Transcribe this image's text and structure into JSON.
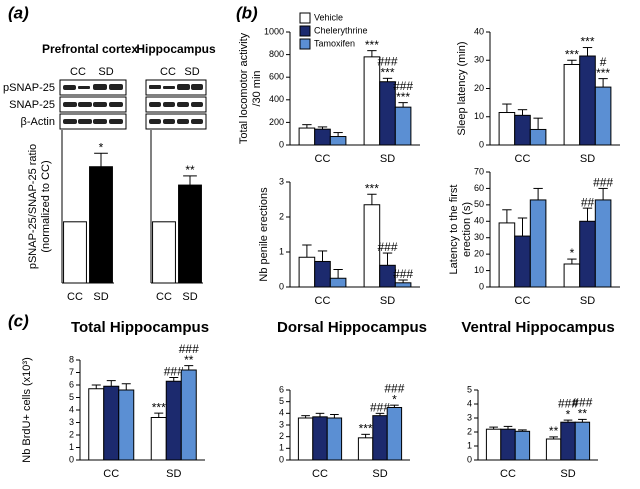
{
  "panel_labels": [
    "(a)",
    "(b)",
    "(c)"
  ],
  "blot": {
    "lanes": [
      "CC",
      "SD"
    ],
    "rows": [
      "pSNAP-25",
      "SNAP-25",
      "β-Actin"
    ]
  },
  "chart_data": [
    {
      "type": "bar",
      "title": "Prefrontal cortex",
      "ylabel": [
        "pSNAP-25/SNAP-25 ratio",
        "(normalized to CC)"
      ],
      "categories": [
        "CC",
        "SD"
      ],
      "values": [
        100,
        190
      ],
      "errors": [
        null,
        22
      ],
      "colors": [
        "#ffffff",
        "#000000"
      ],
      "annotations": [
        null,
        [
          "*"
        ]
      ],
      "ylim": [
        0,
        250
      ]
    },
    {
      "type": "bar",
      "title": "Hippocampus",
      "categories": [
        "CC",
        "SD"
      ],
      "values": [
        100,
        160
      ],
      "errors": [
        null,
        15
      ],
      "colors": [
        "#ffffff",
        "#000000"
      ],
      "annotations": [
        null,
        [
          "**"
        ]
      ],
      "ylim": [
        0,
        250
      ]
    },
    {
      "type": "grouped_bar",
      "ylabel": [
        "Total locomotor activity",
        "/30 min"
      ],
      "categories": [
        "CC",
        "SD"
      ],
      "legend": "top-left",
      "series": [
        {
          "name": "Vehicle",
          "color": "#ffffff",
          "values": [
            150,
            780
          ],
          "errors": [
            30,
            55
          ],
          "annotations": [
            null,
            [
              "***"
            ]
          ]
        },
        {
          "name": "Chelerythrine",
          "color": "#1c2a6e",
          "values": [
            140,
            560
          ],
          "errors": [
            20,
            30
          ],
          "annotations": [
            null,
            [
              "###",
              "***"
            ]
          ]
        },
        {
          "name": "Tamoxifen",
          "color": "#5b8fd3",
          "values": [
            75,
            335
          ],
          "errors": [
            35,
            40
          ],
          "annotations": [
            null,
            [
              "###",
              "***"
            ]
          ]
        }
      ],
      "ylim": [
        0,
        1000
      ],
      "yticks": [
        0,
        200,
        400,
        600,
        800,
        1000
      ]
    },
    {
      "type": "grouped_bar",
      "ylabel": [
        "Sleep latency (min)"
      ],
      "categories": [
        "CC",
        "SD"
      ],
      "series": [
        {
          "color": "#ffffff",
          "values": [
            11.5,
            28.5
          ],
          "errors": [
            3,
            1.5
          ],
          "annotations": [
            null,
            [
              "***"
            ]
          ]
        },
        {
          "color": "#1c2a6e",
          "values": [
            10.5,
            31.5
          ],
          "errors": [
            2,
            3
          ],
          "annotations": [
            null,
            [
              "***"
            ]
          ]
        },
        {
          "color": "#5b8fd3",
          "values": [
            5.5,
            20.5
          ],
          "errors": [
            4,
            3
          ],
          "annotations": [
            null,
            [
              "#",
              "***"
            ]
          ]
        }
      ],
      "ylim": [
        0,
        40
      ],
      "yticks": [
        0,
        10,
        20,
        30,
        40
      ]
    },
    {
      "type": "grouped_bar",
      "ylabel": [
        "Nb penile erections"
      ],
      "categories": [
        "CC",
        "SD"
      ],
      "series": [
        {
          "color": "#ffffff",
          "values": [
            0.85,
            2.35
          ],
          "errors": [
            0.35,
            0.3
          ],
          "annotations": [
            null,
            [
              "***"
            ]
          ]
        },
        {
          "color": "#1c2a6e",
          "values": [
            0.73,
            0.62
          ],
          "errors": [
            0.3,
            0.35
          ],
          "annotations": [
            null,
            [
              "###"
            ]
          ]
        },
        {
          "color": "#5b8fd3",
          "values": [
            0.25,
            0.12
          ],
          "errors": [
            0.25,
            0.08
          ],
          "annotations": [
            null,
            [
              "###"
            ]
          ]
        }
      ],
      "ylim": [
        0,
        3
      ],
      "yticks": [
        0,
        1,
        2,
        3
      ]
    },
    {
      "type": "grouped_bar",
      "ylabel": [
        "Latency to the first",
        "erection (s)"
      ],
      "categories": [
        "CC",
        "SD"
      ],
      "series": [
        {
          "color": "#ffffff",
          "values": [
            39,
            14
          ],
          "errors": [
            8,
            3
          ],
          "annotations": [
            null,
            [
              "*"
            ]
          ]
        },
        {
          "color": "#1c2a6e",
          "values": [
            31,
            40
          ],
          "errors": [
            11,
            8
          ],
          "annotations": [
            null,
            [
              "##"
            ]
          ]
        },
        {
          "color": "#5b8fd3",
          "values": [
            53,
            53
          ],
          "errors": [
            7,
            7
          ],
          "annotations": [
            null,
            [
              "###"
            ]
          ]
        }
      ],
      "ylim": [
        0,
        70
      ],
      "yticks": [
        0,
        10,
        20,
        30,
        40,
        50,
        60,
        70
      ]
    },
    {
      "type": "grouped_bar",
      "title": "Total Hippocampus",
      "ylabel": [
        "Nb BrdU+ cells (x10³)"
      ],
      "categories": [
        "CC",
        "SD"
      ],
      "series": [
        {
          "color": "#ffffff",
          "values": [
            5.7,
            3.4
          ],
          "errors": [
            0.3,
            0.35
          ],
          "annotations": [
            null,
            [
              "***"
            ]
          ]
        },
        {
          "color": "#1c2a6e",
          "values": [
            5.9,
            6.3
          ],
          "errors": [
            0.45,
            0.3
          ],
          "annotations": [
            null,
            [
              "###"
            ]
          ]
        },
        {
          "color": "#5b8fd3",
          "values": [
            5.6,
            7.2
          ],
          "errors": [
            0.5,
            0.35
          ],
          "annotations": [
            null,
            [
              "###",
              "**"
            ]
          ]
        }
      ],
      "ylim": [
        0,
        8
      ],
      "yticks": [
        0,
        1,
        2,
        3,
        4,
        5,
        6,
        7,
        8
      ]
    },
    {
      "type": "grouped_bar",
      "title": "Dorsal Hippocampus",
      "categories": [
        "CC",
        "SD"
      ],
      "series": [
        {
          "color": "#ffffff",
          "values": [
            3.6,
            1.9
          ],
          "errors": [
            0.2,
            0.3
          ],
          "annotations": [
            null,
            [
              "***"
            ]
          ]
        },
        {
          "color": "#1c2a6e",
          "values": [
            3.7,
            3.8
          ],
          "errors": [
            0.3,
            0.2
          ],
          "annotations": [
            null,
            [
              "###"
            ]
          ]
        },
        {
          "color": "#5b8fd3",
          "values": [
            3.6,
            4.5
          ],
          "errors": [
            0.3,
            0.2
          ],
          "annotations": [
            null,
            [
              "###",
              "*"
            ]
          ]
        }
      ],
      "ylim": [
        0,
        6
      ],
      "yticks": [
        0,
        1,
        2,
        3,
        4,
        5,
        6
      ]
    },
    {
      "type": "grouped_bar",
      "title": "Ventral Hippocampus",
      "categories": [
        "CC",
        "SD"
      ],
      "series": [
        {
          "color": "#ffffff",
          "values": [
            2.2,
            1.5
          ],
          "errors": [
            0.15,
            0.15
          ],
          "annotations": [
            null,
            [
              "**"
            ]
          ]
        },
        {
          "color": "#1c2a6e",
          "values": [
            2.2,
            2.7
          ],
          "errors": [
            0.2,
            0.15
          ],
          "annotations": [
            null,
            [
              "###",
              "*"
            ]
          ]
        },
        {
          "color": "#5b8fd3",
          "values": [
            2.05,
            2.7
          ],
          "errors": [
            0.1,
            0.2
          ],
          "annotations": [
            null,
            [
              "###",
              "**"
            ]
          ]
        }
      ],
      "ylim": [
        0,
        5
      ],
      "yticks": [
        0,
        1,
        2,
        3,
        4,
        5
      ]
    }
  ]
}
